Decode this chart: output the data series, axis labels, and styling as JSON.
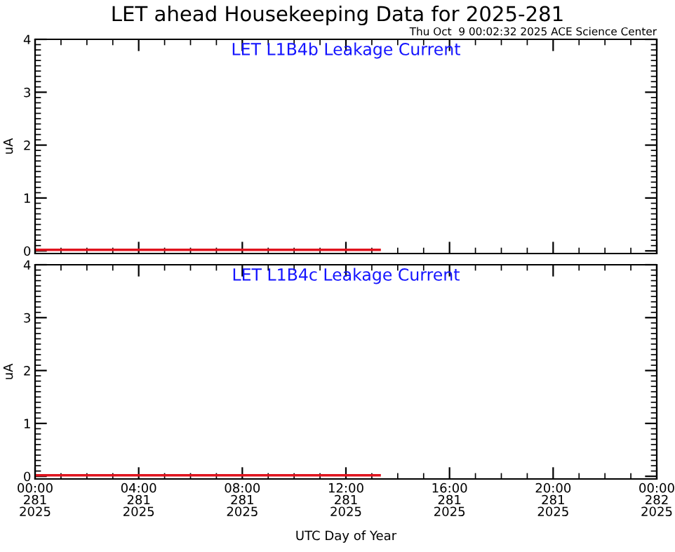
{
  "chart_data": [
    {
      "type": "line",
      "title": "LET ahead Housekeeping Data for 2025-281",
      "subtitle": "LET L1B4b Leakage Current",
      "ylabel": "uA",
      "annotations": [
        "Thu Oct  9 00:02:32 2025 ACE Science Center"
      ],
      "x": [
        "2025-10-08T00:00",
        "2025-10-08T13:18"
      ],
      "series": [
        {
          "color": "#e0141e",
          "values": [
            0.02,
            0.02
          ]
        }
      ],
      "xlim": [
        "2025-10-08T00:00",
        "2025-10-09T00:00"
      ],
      "xticks": [
        {
          "value": "2025-10-08T00:00",
          "label": null
        },
        {
          "value": "2025-10-08T04:00",
          "label": null
        },
        {
          "value": "2025-10-08T08:00",
          "label": null
        },
        {
          "value": "2025-10-08T12:00",
          "label": null
        },
        {
          "value": "2025-10-08T16:00",
          "label": null
        },
        {
          "value": "2025-10-08T20:00",
          "label": null
        },
        {
          "value": "2025-10-09T00:00",
          "label": null
        }
      ],
      "ylim": [
        -0.05,
        4
      ],
      "yticks": [
        0,
        1,
        2,
        3,
        4
      ],
      "tick_labels": "y",
      "grid": false,
      "legend": false
    },
    {
      "type": "line",
      "subtitle": "LET L1B4c Leakage Current",
      "ylabel": "uA",
      "xlabel": "UTC Day of Year",
      "x": [
        "2025-10-08T00:00",
        "2025-10-08T13:18"
      ],
      "series": [
        {
          "color": "#e0141e",
          "values": [
            0.02,
            0.02
          ]
        }
      ],
      "xlim": [
        "2025-10-08T00:00",
        "2025-10-09T00:00"
      ],
      "xticks": [
        {
          "value": "2025-10-08T00:00",
          "label": "00:00\n281\n2025"
        },
        {
          "value": "2025-10-08T04:00",
          "label": "04:00\n281\n2025"
        },
        {
          "value": "2025-10-08T08:00",
          "label": "08:00\n281\n2025"
        },
        {
          "value": "2025-10-08T12:00",
          "label": "12:00\n281\n2025"
        },
        {
          "value": "2025-10-08T16:00",
          "label": "16:00\n281\n2025"
        },
        {
          "value": "2025-10-08T20:00",
          "label": "20:00\n281\n2025"
        },
        {
          "value": "2025-10-09T00:00",
          "label": "00:00\n282\n2025"
        }
      ],
      "ylim": [
        -0.05,
        4
      ],
      "yticks": [
        0,
        1,
        2,
        3,
        4
      ],
      "grid": false,
      "legend": false
    }
  ]
}
